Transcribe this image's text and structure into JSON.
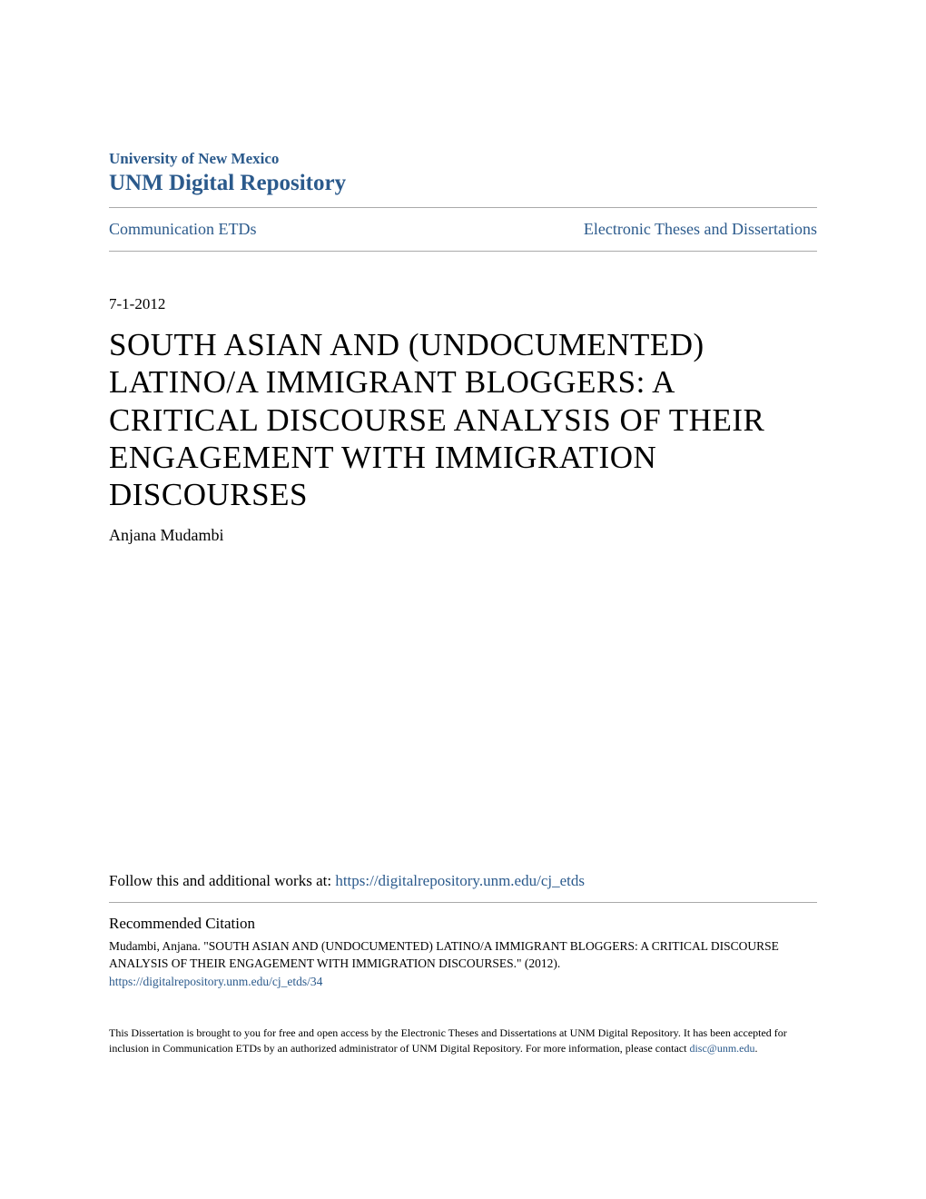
{
  "header": {
    "institution": "University of New Mexico",
    "repository": "UNM Digital Repository"
  },
  "nav": {
    "left_link": "Communication ETDs",
    "right_link": "Electronic Theses and Dissertations"
  },
  "date": "7-1-2012",
  "title": "SOUTH ASIAN AND (UNDOCUMENTED) LATINO/A IMMIGRANT BLOGGERS: A CRITICAL DISCOURSE ANALYSIS OF THEIR ENGAGEMENT WITH IMMIGRATION DISCOURSES",
  "author": "Anjana Mudambi",
  "follow": {
    "prefix": "Follow this and additional works at: ",
    "url": "https://digitalrepository.unm.edu/cj_etds"
  },
  "citation": {
    "heading": "Recommended Citation",
    "text": "Mudambi, Anjana. \"SOUTH ASIAN AND (UNDOCUMENTED) LATINO/A IMMIGRANT BLOGGERS: A CRITICAL DISCOURSE ANALYSIS OF THEIR ENGAGEMENT WITH IMMIGRATION DISCOURSES.\" (2012).",
    "url": "https://digitalrepository.unm.edu/cj_etds/34"
  },
  "footer": {
    "text": "This Dissertation is brought to you for free and open access by the Electronic Theses and Dissertations at UNM Digital Repository. It has been accepted for inclusion in Communication ETDs by an authorized administrator of UNM Digital Repository. For more information, please contact ",
    "email": "disc@unm.edu",
    "suffix": "."
  },
  "colors": {
    "link_color": "#2b5a8c",
    "text_color": "#000000",
    "divider_color": "#aaaaaa",
    "background": "#ffffff"
  },
  "typography": {
    "institution_fontsize": 17,
    "repository_fontsize": 25,
    "nav_fontsize": 18,
    "date_fontsize": 17,
    "title_fontsize": 35,
    "author_fontsize": 18,
    "follow_fontsize": 17,
    "citation_heading_fontsize": 17,
    "citation_text_fontsize": 13.5,
    "footer_fontsize": 12
  }
}
